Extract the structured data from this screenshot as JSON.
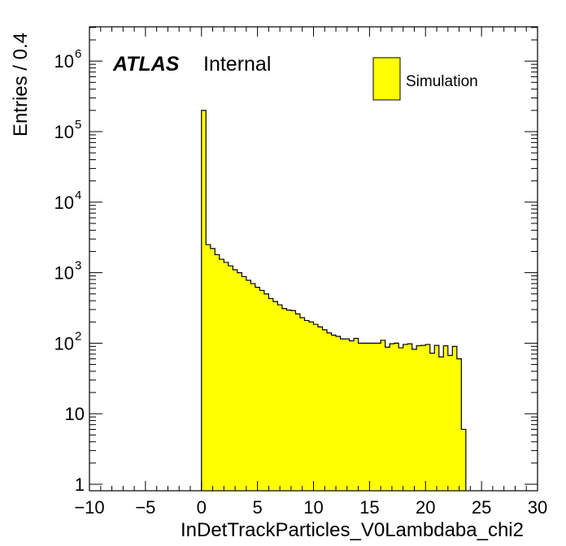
{
  "chart_data": {
    "type": "bar",
    "style": "histogram",
    "title": "",
    "xlabel": "InDetTrackParticles_V0Lambdaba_chi2",
    "ylabel": "Entries / 0.4",
    "xlim": [
      -10,
      30
    ],
    "ylim": [
      0.8,
      3000000
    ],
    "yscale": "log",
    "bin_width": 0.4,
    "x_start": 0,
    "series": [
      {
        "name": "Simulation",
        "color": "#ffff00",
        "edge_color": "#000000",
        "values": [
          200000,
          2500,
          2200,
          1800,
          1550,
          1400,
          1250,
          1100,
          1000,
          880,
          780,
          700,
          620,
          560,
          500,
          430,
          390,
          350,
          310,
          295,
          290,
          260,
          230,
          210,
          200,
          185,
          170,
          155,
          140,
          130,
          125,
          115,
          115,
          108,
          117,
          100,
          100,
          100,
          100,
          100,
          110,
          88,
          98,
          100,
          86,
          96,
          98,
          82,
          92,
          93,
          96,
          72,
          93,
          64,
          92,
          67,
          90,
          60
        ]
      },
      {
        "name": "",
        "values_tail": [
          6
        ]
      }
    ],
    "legend": {
      "position": "top-right",
      "entries": [
        "Simulation"
      ]
    },
    "annotations": {
      "atlas": "ATLAS",
      "status": "Internal"
    },
    "x_ticks": [
      "−10",
      "−5",
      "0",
      "5",
      "10",
      "15",
      "20",
      "25",
      "30"
    ],
    "y_ticks": [
      {
        "base": "1",
        "exp": ""
      },
      {
        "base": "10",
        "exp": ""
      },
      {
        "base": "10",
        "exp": "2"
      },
      {
        "base": "10",
        "exp": "3"
      },
      {
        "base": "10",
        "exp": "4"
      },
      {
        "base": "10",
        "exp": "5"
      },
      {
        "base": "10",
        "exp": "6"
      }
    ],
    "colors": {
      "fill": "#ffff00",
      "line": "#000000"
    }
  }
}
